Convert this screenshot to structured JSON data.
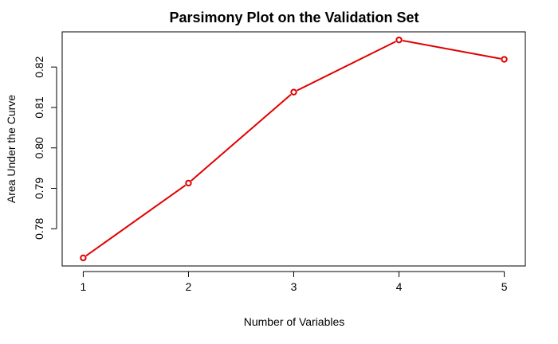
{
  "chart_data": {
    "type": "line",
    "title": "Parsimony Plot on the Validation Set",
    "xlabel": "Number of Variables",
    "ylabel": "Area Under the Curve",
    "x": [
      1,
      2,
      3,
      4,
      5
    ],
    "series": [
      {
        "values": [
          0.7728,
          0.7913,
          0.8138,
          0.8267,
          0.8219
        ],
        "color": "#e00000"
      }
    ],
    "xticks": [
      1,
      2,
      3,
      4,
      5
    ],
    "xtick_labels": [
      "1",
      "2",
      "3",
      "4",
      "5"
    ],
    "yticks": [
      0.78,
      0.79,
      0.8,
      0.81,
      0.82
    ],
    "ytick_labels": [
      "0.78",
      "0.79",
      "0.80",
      "0.81",
      "0.82"
    ],
    "xlim": [
      0.8,
      5.2
    ],
    "ylim": [
      0.7708,
      0.8287
    ],
    "grid": false,
    "marker": "open-circle"
  }
}
